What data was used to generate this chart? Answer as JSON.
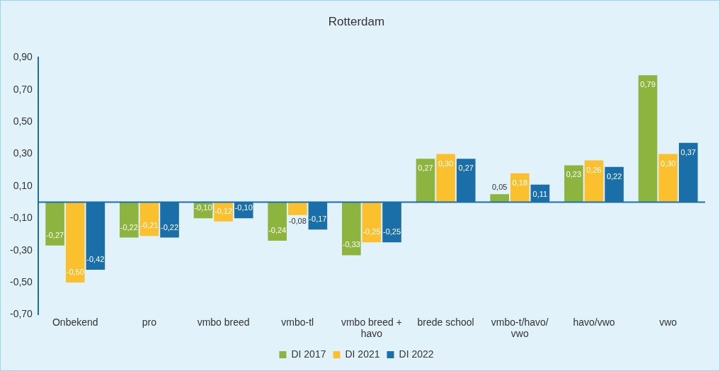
{
  "chart_data": {
    "type": "bar",
    "title": "Rotterdam",
    "categories": [
      "Onbekend",
      "pro",
      "vmbo breed",
      "vmbo-tl",
      "vmbo breed + havo",
      "brede school",
      "vmbo-t/havo/vwo",
      "havo/vwo",
      "vwo"
    ],
    "series": [
      {
        "name": "DI 2017",
        "color": "#8db43e",
        "values": [
          -0.27,
          -0.22,
          -0.1,
          -0.24,
          -0.33,
          0.27,
          0.05,
          0.23,
          0.79
        ],
        "value_labels": [
          "-0,27",
          "-0,22",
          "-0,10",
          "-0,24",
          "-0,33",
          "0,27",
          "0,05",
          "0,23",
          "0,79"
        ]
      },
      {
        "name": "DI 2021",
        "color": "#fbc02d",
        "values": [
          -0.5,
          -0.21,
          -0.12,
          -0.08,
          -0.25,
          0.3,
          0.18,
          0.26,
          0.3
        ],
        "value_labels": [
          "-0,50",
          "-0,21",
          "-0,12",
          "-0,08",
          "-0,25",
          "0,30",
          "0,18",
          "0,26",
          "0,30"
        ]
      },
      {
        "name": "DI 2022",
        "color": "#1a6fa8",
        "values": [
          -0.42,
          -0.22,
          -0.1,
          -0.17,
          -0.25,
          0.27,
          0.11,
          0.22,
          0.37
        ],
        "value_labels": [
          "-0,42",
          "-0,22",
          "-0,10",
          "-0,17",
          "-0,25",
          "0,27",
          "0,11",
          "0,22",
          "0,37"
        ]
      }
    ],
    "ylim": [
      -0.7,
      0.9
    ],
    "yticks": [
      {
        "value": -0.7,
        "label": "-0,70"
      },
      {
        "value": -0.5,
        "label": "-0,50"
      },
      {
        "value": -0.3,
        "label": "-0,30"
      },
      {
        "value": -0.1,
        "label": "-0,10"
      },
      {
        "value": 0.1,
        "label": "0,10"
      },
      {
        "value": 0.3,
        "label": "0,30"
      },
      {
        "value": 0.5,
        "label": "0,50"
      },
      {
        "value": 0.7,
        "label": "0,70"
      },
      {
        "value": 0.9,
        "label": "0,90"
      }
    ],
    "ref_lines": [
      {
        "axis": "y",
        "value": 0,
        "color": "#1a6fa8"
      }
    ],
    "grid": false,
    "legend": "bottom"
  }
}
